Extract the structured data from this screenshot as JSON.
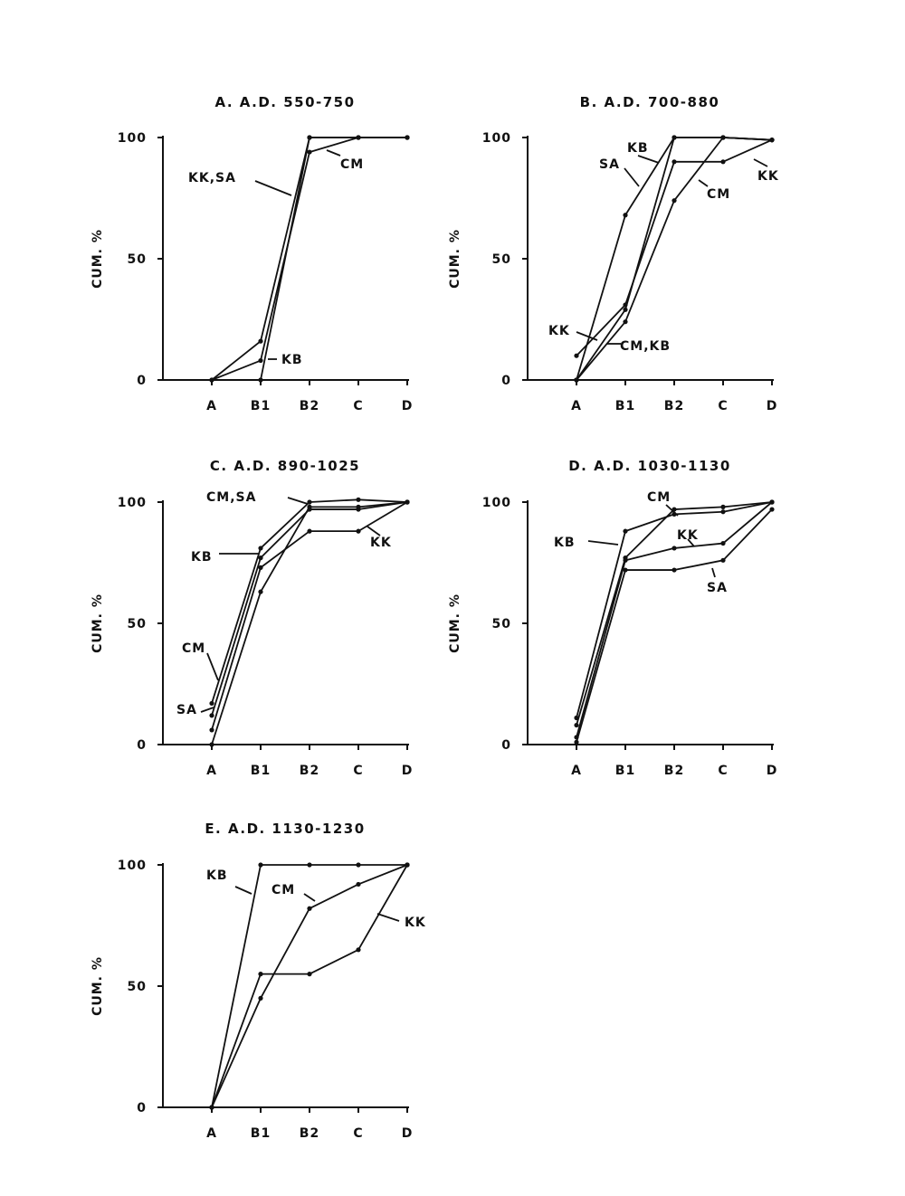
{
  "chart_data": [
    {
      "type": "line",
      "title": "A.  A.D. 550-750",
      "categories": [
        "A",
        "B1",
        "B2",
        "C",
        "D"
      ],
      "ylabel": "CUM. %",
      "yticks": [
        0,
        50,
        100
      ],
      "ylim": [
        0,
        100
      ],
      "grid": false,
      "series": [
        {
          "values": [
            0,
            16,
            100,
            100,
            100
          ]
        },
        {
          "values": [
            0,
            8,
            94,
            100,
            100
          ]
        },
        {
          "values": [
            null,
            0,
            100,
            100,
            100
          ]
        }
      ],
      "annotations": [
        "KK,SA",
        "CM",
        "KB"
      ]
    },
    {
      "type": "line",
      "title": "B.  A.D. 700-880",
      "categories": [
        "A",
        "B1",
        "B2",
        "C",
        "D"
      ],
      "ylabel": "CUM. %",
      "yticks": [
        0,
        50,
        100
      ],
      "ylim": [
        0,
        100
      ],
      "grid": false,
      "series": [
        {
          "values": [
            0,
            68,
            100,
            100,
            99
          ]
        },
        {
          "values": [
            0,
            29,
            100,
            100,
            99
          ]
        },
        {
          "values": [
            10,
            31,
            90,
            90,
            99
          ]
        },
        {
          "values": [
            0,
            24,
            74,
            100,
            99
          ]
        }
      ],
      "annotations": [
        "SA",
        "KB",
        "CM",
        "KK",
        "KK",
        "CM,KB"
      ]
    },
    {
      "type": "line",
      "title": "C.  A.D. 890-1025",
      "categories": [
        "A",
        "B1",
        "B2",
        "C",
        "D"
      ],
      "ylabel": "CUM. %",
      "yticks": [
        0,
        50,
        100
      ],
      "ylim": [
        0,
        100
      ],
      "grid": false,
      "series": [
        {
          "values": [
            17,
            81,
            100,
            101,
            100
          ]
        },
        {
          "values": [
            12,
            77,
            97,
            97,
            100
          ]
        },
        {
          "values": [
            6,
            73,
            88,
            88,
            100
          ]
        },
        {
          "values": [
            0,
            63,
            98,
            98,
            100
          ]
        }
      ],
      "annotations": [
        "CM,SA",
        "KB",
        "KK",
        "CM",
        "SA"
      ]
    },
    {
      "type": "line",
      "title": "D.  A.D. 1030-1130",
      "categories": [
        "A",
        "B1",
        "B2",
        "C",
        "D"
      ],
      "ylabel": "CUM. %",
      "yticks": [
        0,
        50,
        100
      ],
      "ylim": [
        0,
        100
      ],
      "grid": false,
      "series": [
        {
          "values": [
            11,
            88,
            95,
            96,
            100
          ]
        },
        {
          "values": [
            8,
            77,
            97,
            98,
            100
          ]
        },
        {
          "values": [
            3,
            76,
            81,
            83,
            100
          ]
        },
        {
          "values": [
            1,
            72,
            72,
            76,
            97
          ]
        }
      ],
      "annotations": [
        "CM",
        "KB",
        "KK",
        "SA"
      ]
    },
    {
      "type": "line",
      "title": "E.  A.D. 1130-1230",
      "categories": [
        "A",
        "B1",
        "B2",
        "C",
        "D"
      ],
      "ylabel": "CUM. %",
      "yticks": [
        0,
        50,
        100
      ],
      "ylim": [
        0,
        100
      ],
      "grid": false,
      "series": [
        {
          "values": [
            0,
            100,
            100,
            100,
            100
          ]
        },
        {
          "values": [
            0,
            45,
            82,
            92,
            100
          ]
        },
        {
          "values": [
            0,
            55,
            55,
            65,
            100
          ]
        }
      ],
      "annotations": [
        "KB",
        "CM",
        "KK"
      ]
    }
  ]
}
